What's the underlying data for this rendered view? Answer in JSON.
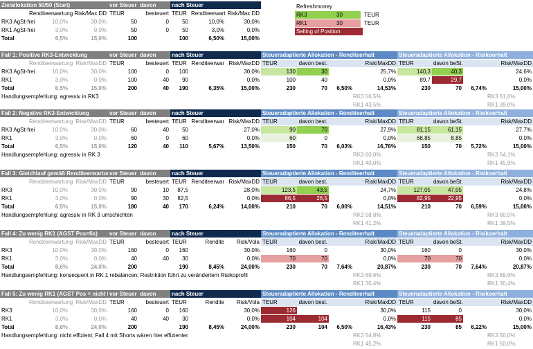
{
  "refresh": {
    "title": "Refreshmoney",
    "rows": [
      {
        "label": "RK3",
        "value": "30",
        "unit": "TEUR"
      },
      {
        "label": "RK1",
        "value": "30",
        "unit": "TEUR"
      }
    ],
    "selling": "Selling of Position"
  },
  "z": {
    "title": "Zielallokation 50/50 (Start)",
    "vs": "vor Steuer",
    "davon": "davon",
    "ns": "nach Steuer",
    "sub": [
      "Renditeerwartung",
      "Risk/Max DD",
      "TEUR",
      "besteuert",
      "TEUR",
      "Renditeerwart",
      "Risk/Max DD"
    ],
    "rows": [
      [
        "RK3 AgSt-frei",
        "10,0%",
        "30,0%",
        "50",
        "0",
        "50",
        "10,0%",
        "30,0%"
      ],
      [
        "RK1 AgSt-frei",
        "3,0%",
        "0,0%",
        "50",
        "0",
        "50",
        "3,0%",
        "0,0%"
      ],
      [
        "Total",
        "6,5%",
        "15,0%",
        "100",
        "",
        "100",
        "6,50%",
        "15,00%"
      ]
    ]
  },
  "cases": [
    {
      "title": "Fall 1: Positive RK3-Entwicklung",
      "vs": "vor Steuer",
      "davon": "davon",
      "ns": "nach Steuer",
      "ah": "Steueradaptierte Allokation  - Renditeerhalt",
      "bh": "Steueradaptierte Allokation  - Risikoerhalt",
      "sub": [
        "Renditeerwartung",
        "Risk/MaxDD",
        "TEUR",
        "besteuert",
        "TEUR",
        "Renditeerwar",
        "Risk/MaxDD",
        "TEUR",
        "davon best.",
        "Risk/MaxDD",
        "TEUR",
        "davon beSt.",
        "Risk/MaxDD"
      ],
      "rows": [
        [
          "RK3 AgSt-frei",
          "10,0%",
          "30,0%",
          "100",
          "0",
          "100",
          "",
          "30,0%",
          "130",
          "30",
          "25,7%",
          "140,3",
          "40,3",
          "24,6%"
        ],
        [
          "RK1",
          "3,0%",
          "0,0%",
          "100",
          "40",
          "90",
          "",
          "0,0%",
          "100",
          "40",
          "0,0%",
          "89,7",
          "29,7",
          "0,0%"
        ],
        [
          "Total",
          "6,5%",
          "15,0%",
          "200",
          "40",
          "190",
          "6,35%",
          "15,00%",
          "230",
          "70",
          "14,53%",
          "230",
          "70",
          "15,00%"
        ]
      ],
      "ta": "6,50%",
      "tb": "6,74%",
      "hand": "Handlungsempfehlung: agressiv in RK3",
      "pa": [
        "RK3 56,5%",
        "RK1 43,5%"
      ],
      "pb": [
        "RK3 61,0%",
        "RK1 39,0%"
      ]
    },
    {
      "title": "Fall 2: Negative RK3-Entwicklung",
      "vs": "vor Steuer",
      "davon": "davon",
      "ns": "nach Steuer",
      "ah": "Steueradaptierte Allokation  - Renditeerhalt",
      "bh": "Steueradaptierte Allokation  - Risikoerhalt",
      "sub": [
        "Renditeerwartung",
        "Risk/MaxDD",
        "TEUR",
        "besteuert",
        "TEUR",
        "Renditeerwar",
        "Risk/MaxDD",
        "TEUR",
        "davon best.",
        "Risk/MaxDD",
        "TEUR",
        "davon beSt.",
        "Risk/MaxDD"
      ],
      "rows": [
        [
          "RK3 AgSt-frei",
          "10,0%",
          "30,0%",
          "60",
          "40",
          "50",
          "",
          "27,0%",
          "90",
          "70",
          "27,9%",
          "81,15",
          "61,15",
          "27,7%"
        ],
        [
          "RK1",
          "3,0%",
          "0,0%",
          "60",
          "0",
          "60",
          "",
          "0,0%",
          "60",
          "0",
          "0,0%",
          "68,85",
          "8,85",
          "0,0%"
        ],
        [
          "Total",
          "6,5%",
          "15,0%",
          "120",
          "40",
          "110",
          "5,67%",
          "13,50%",
          "150",
          "70",
          "16,76%",
          "150",
          "70",
          "15,00%"
        ]
      ],
      "ta": "6,03%",
      "tb": "5,72%",
      "hand": "Handlungsempfehlung: agressiv in RK 3",
      "pa": [
        "RK3 60,0%",
        "RK1 40,0%"
      ],
      "pb": [
        "RK3 54,1%",
        "RK1 45,9%"
      ]
    },
    {
      "title": "Fall 3: Gleichlauf gemäß Renditeerwartung",
      "vs": "vor Steuer",
      "davon": "davon",
      "ns": "nach Steuer",
      "ah": "Steueradaptierte Allokation  - Renditeerhalt",
      "bh": "Steueradaptierte Allokation  - Risikoerhalt",
      "sub": [
        "Renditeerwartung",
        "Risk/MaxDD",
        "TEUR",
        "besteuert",
        "TEUR",
        "Renditeerwar",
        "Risk/MaxDD",
        "TEUR",
        "davon best.",
        "Risk/MaxDD",
        "TEUR",
        "davon beSt.",
        "Risk/MaxDD"
      ],
      "rows": [
        [
          "RK3",
          "10,0%",
          "30,0%",
          "90",
          "10",
          "87,5",
          "",
          "28,0%",
          "123,5",
          "43,5",
          "24,7%",
          "127,05",
          "47,05",
          "24,8%"
        ],
        [
          "RK1",
          "3,0%",
          "0,0%",
          "90",
          "30",
          "82,5",
          "",
          "0,0%",
          "86,5",
          "26,5",
          "0,0%",
          "82,95",
          "22,95",
          "0,0%"
        ],
        [
          "Total",
          "6,5%",
          "15,0%",
          "180",
          "40",
          "170",
          "6,24%",
          "14,00%",
          "210",
          "70",
          "14,51%",
          "210",
          "70",
          "15,00%"
        ]
      ],
      "ta": "6,00%",
      "tb": "6,59%",
      "hand": "Handlungsempfehlung: agressiv in RK 3 umschichten",
      "pa": [
        "RK3 58,8%",
        "RK1 41,2%"
      ],
      "pb": [
        "RK3 60,5%",
        "RK1 39,5%"
      ]
    },
    {
      "title": "Fall 4: Zu wenig RK1 (AGST Pos=fix)",
      "vs": "vor Steuer",
      "davon": "davon",
      "ns": "nach Steuer",
      "ah": "Steueradaptierte Allokation  - Renditeerhalt",
      "bh": "Steueradaptierte Allokation  - Risikoerhalt",
      "sub": [
        "Renditeerwartung",
        "Risk/MaxDD",
        "TEUR",
        "besteuert",
        "TEUR",
        "Rendite",
        "Risk/Vola",
        "TEUR",
        "davon best.",
        "Risk/MaxDD",
        "TEUR",
        "davon beSt.",
        "Risk/MaxDD"
      ],
      "rows": [
        [
          "RK3",
          "10,0%",
          "30,0%",
          "160",
          "0",
          "160",
          "",
          "30,0%",
          "160",
          "0",
          "30,0%",
          "160",
          "0",
          "30,0%"
        ],
        [
          "RK1",
          "3,0%",
          "0,0%",
          "40",
          "40",
          "30",
          "",
          "0,0%",
          "70",
          "70",
          "0,0%",
          "70",
          "70",
          "0,0%"
        ],
        [
          "Total",
          "8,6%",
          "24,0%",
          "200",
          "",
          "190",
          "8,45%",
          "24,00%",
          "230",
          "70",
          "20,87%",
          "230",
          "70",
          "20,87%"
        ]
      ],
      "ta": "7,64%",
      "tb": "7,64%",
      "hand": "Handlungsempfehlung: konsequent in RK 1 rebalancen; Restriktion führt zu verändertem Risikoprofil",
      "pa": [
        "RK3 69,6%",
        "RK1 30,4%"
      ],
      "pb": [
        "RK3 69,6%",
        "RK1 30,4%"
      ]
    },
    {
      "title": "Fall 5: Zu wenig RK1 (AGST Pos = nicht fix)",
      "vs": "vor Steuer",
      "davon": "davon",
      "ns": "nach Steuer",
      "ah": "Steueradaptierte Allokation  - Renditeerhalt",
      "bh": "Steueradaptierte Allokation  - Risikoerhalt",
      "sub": [
        "Renditeerwartung",
        "Risk/MaxDD",
        "TEUR",
        "besteuert",
        "TEUR",
        "Rendite",
        "Risk/Vola",
        "TEUR",
        "davon best.",
        "Risk/MaxDD",
        "TEUR",
        "davon beSt.",
        "Risk/MaxDD"
      ],
      "rows": [
        [
          "RK3",
          "10,0%",
          "30,0%",
          "160",
          "0",
          "160",
          "",
          "30,0%",
          "126",
          "",
          "30,0%",
          "115",
          "0",
          "30,0%"
        ],
        [
          "RK1",
          "3,0%",
          "0,0%",
          "40",
          "40",
          "30",
          "",
          "0,0%",
          "104",
          "104",
          "0,0%",
          "115",
          "85",
          "0,0%"
        ],
        [
          "Total",
          "8,6%",
          "24,0%",
          "200",
          "",
          "190",
          "8,45%",
          "24,00%",
          "230",
          "104",
          "16,43%",
          "230",
          "85",
          "15,00%"
        ]
      ],
      "ta": "6,50%",
      "tb": "6,22%",
      "hand": "Handlungsempfehlung: nicht effizient; Fall 4 mit Shorts wären hier effizienter",
      "pa": [
        "RK3 54,8%",
        "RK1 45,2%"
      ],
      "pb": [
        "RK3 50,0%",
        "RK1 50,0%"
      ]
    }
  ]
}
